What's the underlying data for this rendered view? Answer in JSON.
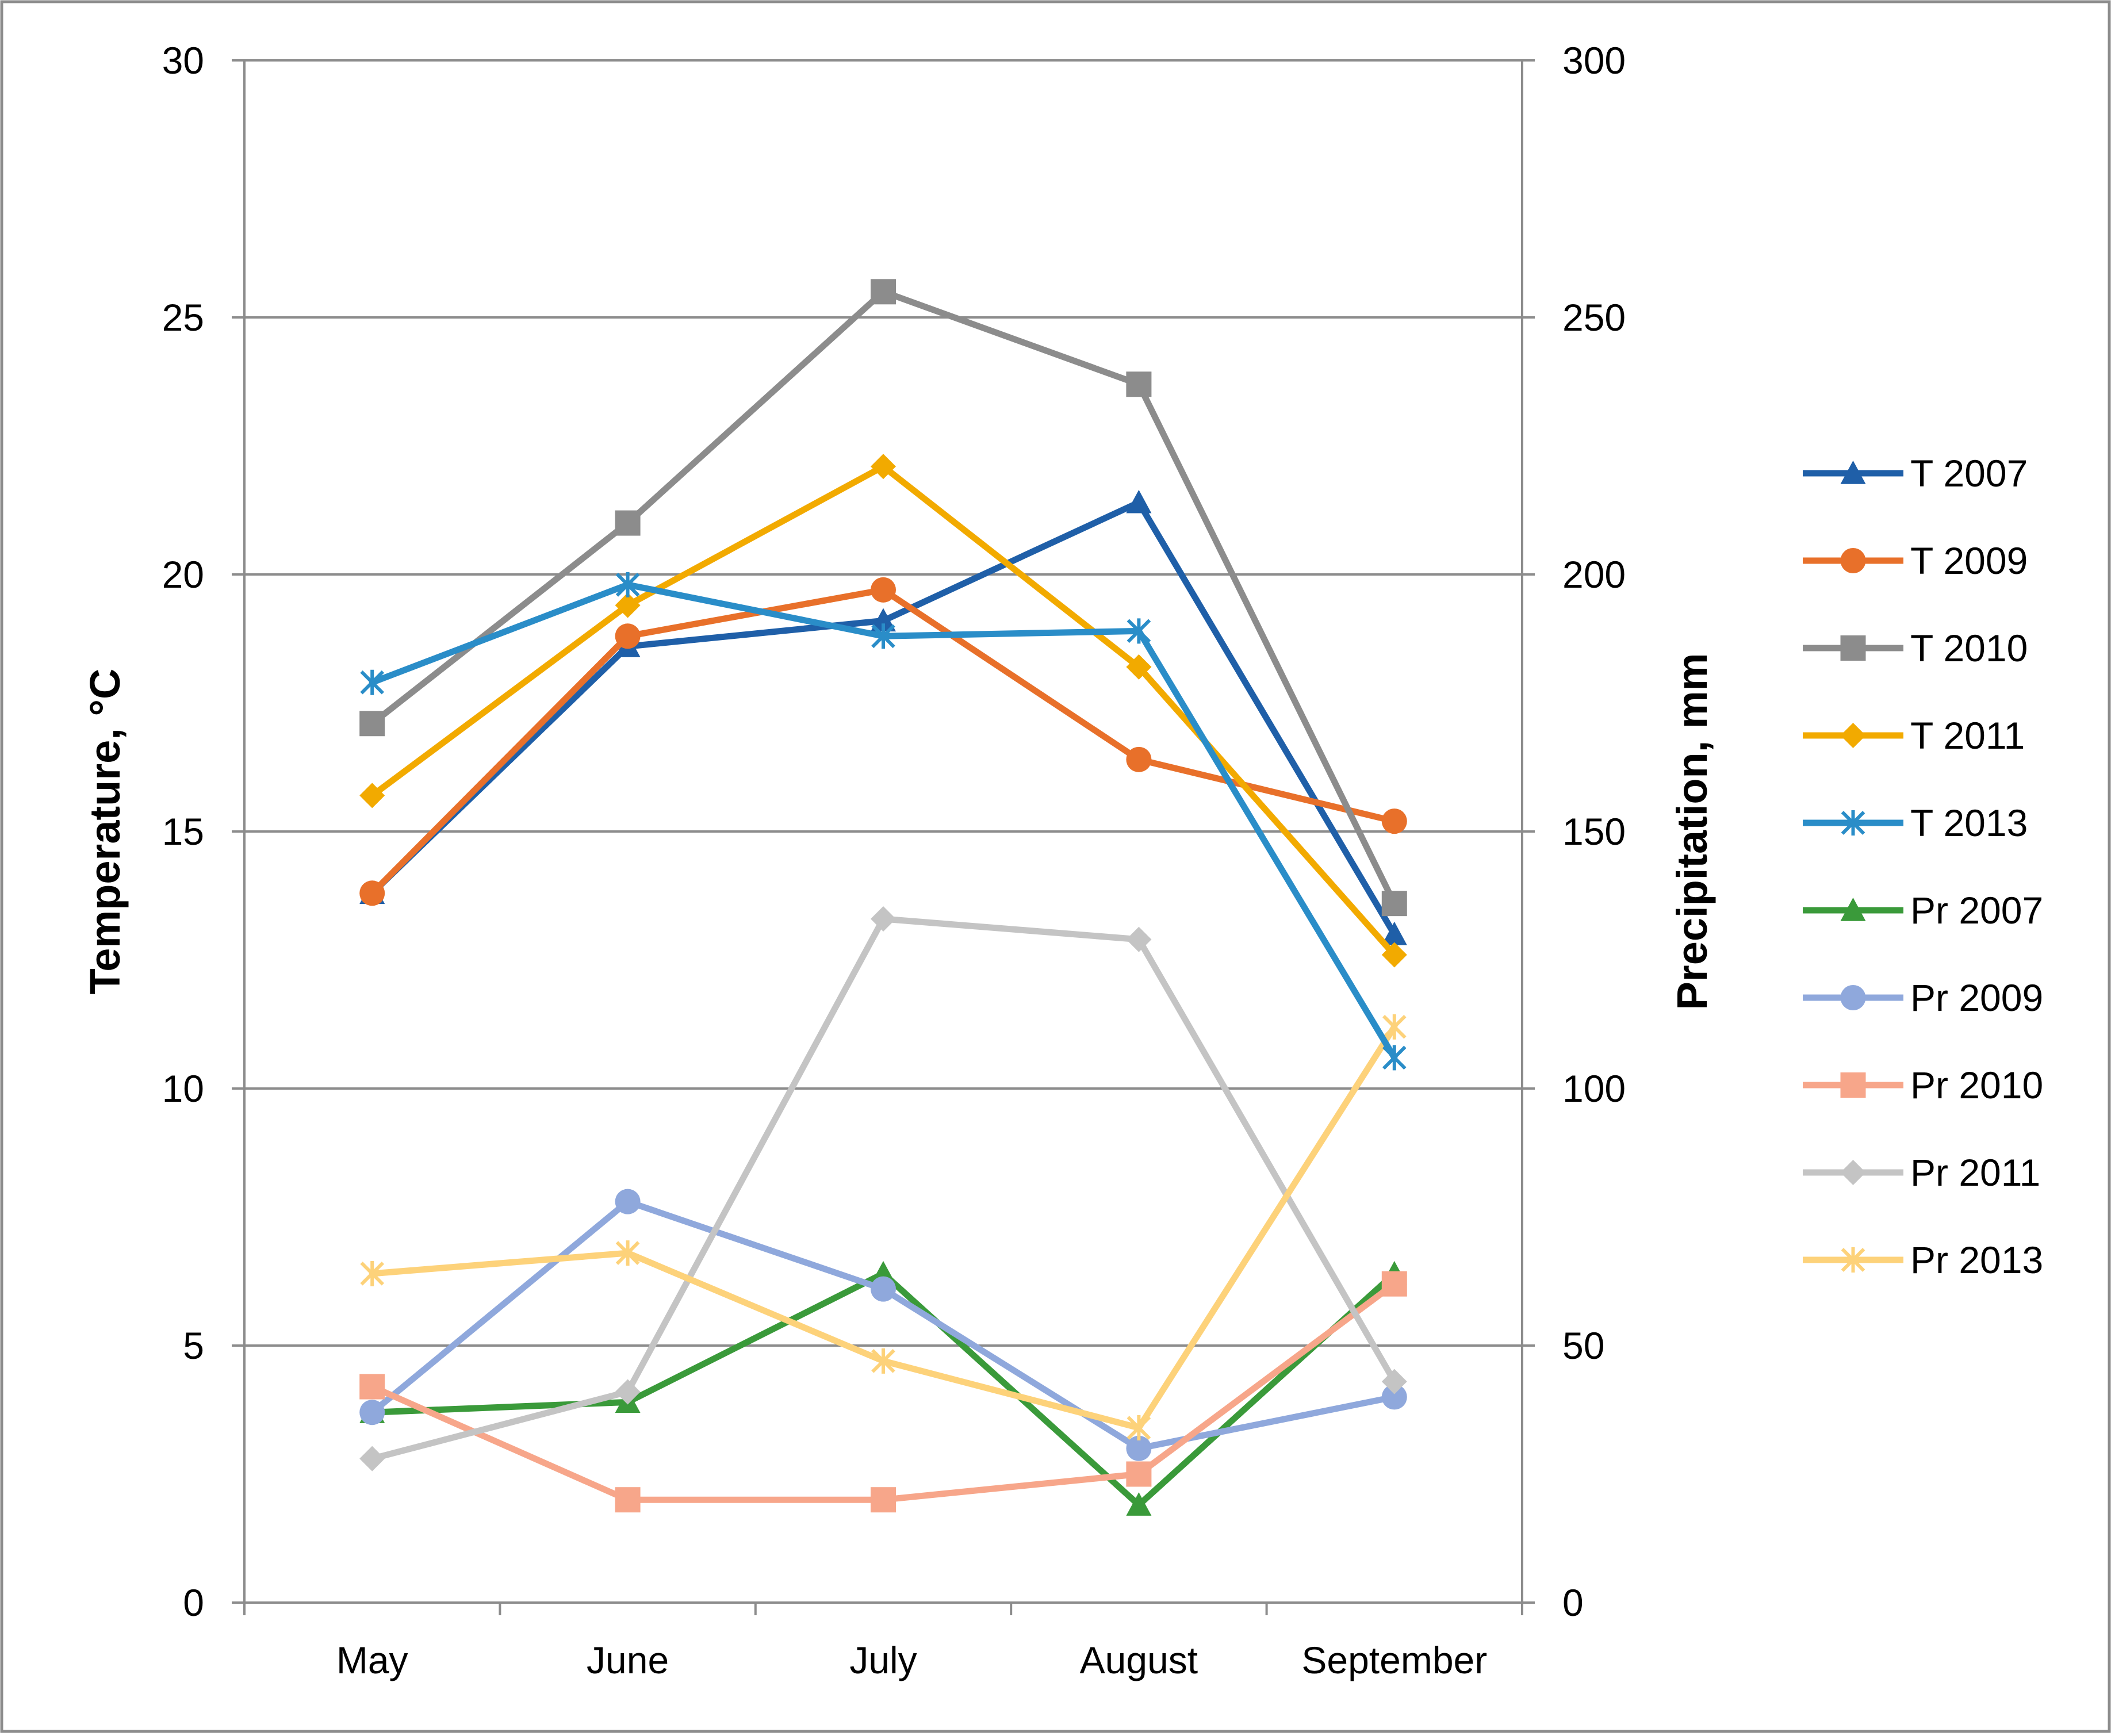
{
  "chart_data": {
    "type": "line",
    "categories": [
      "May",
      "June",
      "July",
      "August",
      "September"
    ],
    "left_axis": {
      "label": "Temperature, °C",
      "min": 0,
      "max": 30,
      "step": 5,
      "ticks": [
        "0",
        "5",
        "10",
        "15",
        "20",
        "25",
        "30"
      ]
    },
    "right_axis": {
      "label": "Precipitation, mm",
      "min": 0,
      "max": 300,
      "step": 50,
      "ticks": [
        "0",
        "50",
        "100",
        "150",
        "200",
        "250",
        "300"
      ]
    },
    "grid": true,
    "legend_position": "right",
    "series": [
      {
        "name": "T 2007",
        "axis": "left",
        "color": "#1F5FA8",
        "marker": "triangle",
        "values": [
          13.8,
          18.6,
          19.1,
          21.4,
          13.0
        ]
      },
      {
        "name": "T 2009",
        "axis": "left",
        "color": "#E8702A",
        "marker": "circle",
        "values": [
          13.8,
          18.8,
          19.7,
          16.4,
          15.2
        ]
      },
      {
        "name": "T 2010",
        "axis": "left",
        "color": "#8C8C8C",
        "marker": "square",
        "values": [
          17.1,
          21.0,
          25.5,
          23.7,
          13.6
        ]
      },
      {
        "name": "T 2011",
        "axis": "left",
        "color": "#F2AA00",
        "marker": "diamond",
        "values": [
          15.7,
          19.4,
          22.1,
          18.2,
          12.6
        ]
      },
      {
        "name": "T 2013",
        "axis": "left",
        "color": "#2A8DC8",
        "marker": "asterisk",
        "values": [
          17.9,
          19.8,
          18.8,
          18.9,
          10.6
        ]
      },
      {
        "name": "Pr 2007",
        "axis": "right",
        "color": "#3A9A3A",
        "marker": "triangle",
        "values": [
          37,
          39,
          64,
          19,
          64
        ]
      },
      {
        "name": "Pr 2009",
        "axis": "right",
        "color": "#8FA8DC",
        "marker": "circle",
        "values": [
          37,
          78,
          61,
          30,
          40
        ]
      },
      {
        "name": "Pr 2010",
        "axis": "right",
        "color": "#F7A68A",
        "marker": "square",
        "values": [
          42,
          20,
          20,
          25,
          62
        ]
      },
      {
        "name": "Pr 2011",
        "axis": "right",
        "color": "#C4C4C4",
        "marker": "diamond",
        "values": [
          28,
          41,
          133,
          129,
          43
        ]
      },
      {
        "name": "Pr 2013",
        "axis": "right",
        "color": "#FDD27A",
        "marker": "asterisk",
        "values": [
          64,
          68,
          47,
          34,
          112
        ]
      }
    ]
  }
}
